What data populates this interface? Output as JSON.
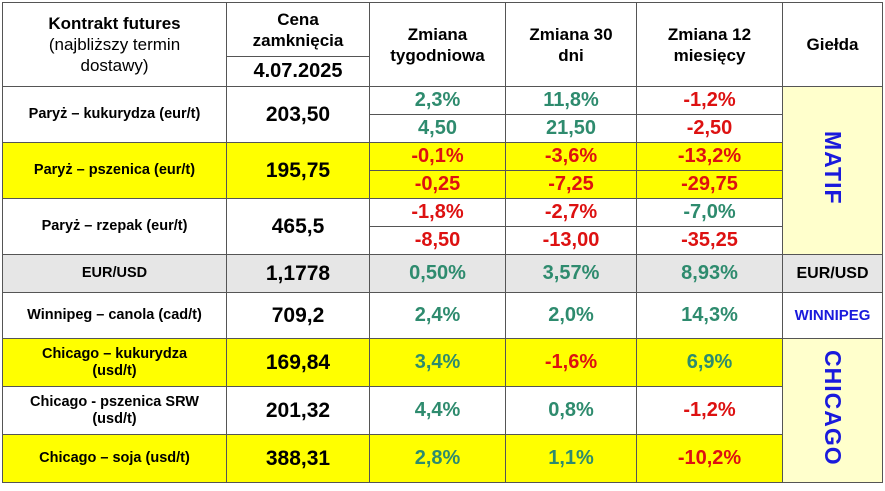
{
  "header": {
    "col1_title": "Kontrakt futures",
    "col1_sub": "(najbliższy termin dostawy)",
    "col2_title": "Cena zamknięcia",
    "col2_date": "4.07.2025",
    "col3": "Zmiana tygodniowa",
    "col4": "Zmiana 30 dni",
    "col5": "Zmiana 12 miesięcy",
    "col6": "Giełda"
  },
  "rows": {
    "paris_corn": {
      "name": "Paryż – kukurydza  (eur/t)",
      "price": "203,50",
      "w_pct": "2,3%",
      "w_abs": "4,50",
      "m_pct": "11,8%",
      "m_abs": "21,50",
      "y_pct": "-1,2%",
      "y_abs": "-2,50"
    },
    "paris_wheat": {
      "name": "Paryż – pszenica (eur/t)",
      "price": "195,75",
      "w_pct": "-0,1%",
      "w_abs": "-0,25",
      "m_pct": "-3,6%",
      "m_abs": "-7,25",
      "y_pct": "-13,2%",
      "y_abs": "-29,75"
    },
    "paris_rapeseed": {
      "name": "Paryż – rzepak (eur/t)",
      "price": "465,5",
      "w_pct": "-1,8%",
      "w_abs": "-8,50",
      "m_pct": "-2,7%",
      "m_abs": "-13,00",
      "y_pct": "-7,0%",
      "y_abs": "-35,25"
    },
    "eurusd": {
      "name": "EUR/USD",
      "price": "1,1778",
      "w": "0,50%",
      "m": "3,57%",
      "y": "8,93%",
      "exchange": "EUR/USD"
    },
    "winnipeg": {
      "name": "Winnipeg – canola (cad/t)",
      "price": "709,2",
      "w": "2,4%",
      "m": "2,0%",
      "y": "14,3%",
      "exchange": "WINNIPEG"
    },
    "chicago_corn": {
      "name": "Chicago – kukurydza (usd/t)",
      "price": "169,84",
      "w": "3,4%",
      "m": "-1,6%",
      "y": "6,9%"
    },
    "chicago_wheat": {
      "name": "Chicago - pszenica SRW (usd/t)",
      "price": "201,32",
      "w": "4,4%",
      "m": "0,8%",
      "y": "-1,2%"
    },
    "chicago_soy": {
      "name": "Chicago – soja (usd/t)",
      "price": "388,31",
      "w": "2,8%",
      "m": "1,1%",
      "y": "-10,2%"
    }
  },
  "exchanges": {
    "matif": "MATIF",
    "chicago": "CHICAGO"
  },
  "colors": {
    "positive": "#2e8b6e",
    "negative": "#dd1111",
    "highlight": "#ffff00",
    "exchange_label": "#1a1adc",
    "gray_row": "#e6e6e6"
  }
}
